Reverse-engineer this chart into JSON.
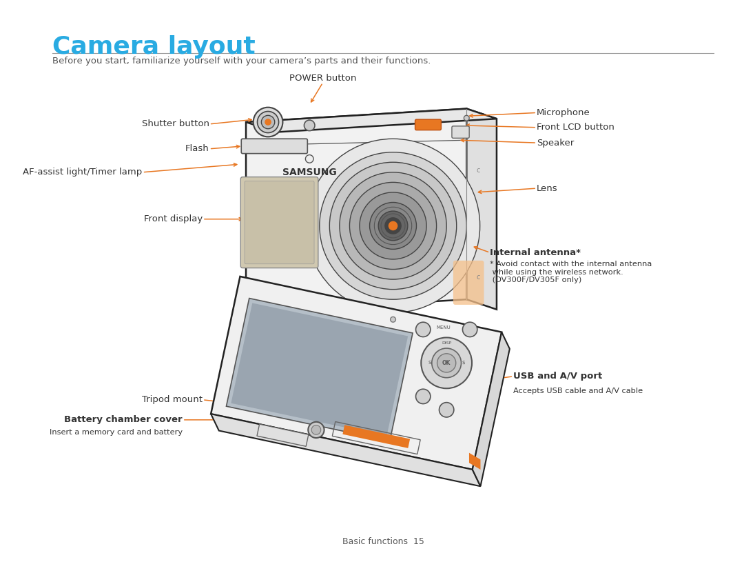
{
  "title": "Camera layout",
  "title_color": "#29ABE2",
  "title_fontsize": 26,
  "subtitle": "Before you start, familiarize yourself with your camera’s parts and their functions.",
  "subtitle_color": "#555555",
  "subtitle_fontsize": 9.5,
  "bg_color": "#ffffff",
  "arrow_color": "#E87722",
  "label_color": "#333333",
  "page_footer": "Basic functions  15",
  "antenna_note": "* Avoid contact with the internal antenna\n while using the wireless network.\n (DV300F/DV305F only)"
}
